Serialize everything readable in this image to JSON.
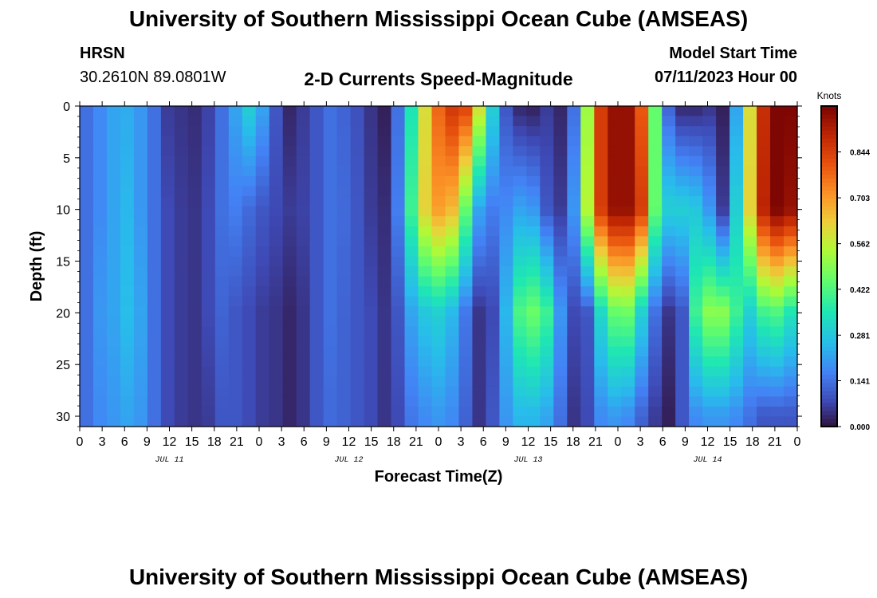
{
  "page": {
    "title_top": "University of Southern Mississippi Ocean Cube (AMSEAS)",
    "title_bottom": "University of Southern Mississippi Ocean Cube (AMSEAS)",
    "station": "HRSN",
    "coords": "30.2610N  89.0801W",
    "plot_title": "2-D Currents Speed-Magnitude",
    "start_label": "Model Start Time",
    "start_value": "07/11/2023 Hour 00"
  },
  "chart_data": {
    "type": "heatmap",
    "title": "2-D Currents Speed-Magnitude",
    "xlabel": "Forecast Time(Z)",
    "ylabel": "Depth (ft)",
    "ylim": [
      0,
      31
    ],
    "yticks": [
      0,
      5,
      10,
      15,
      20,
      25,
      30
    ],
    "x_hours_range": [
      0,
      96
    ],
    "x_tick_step_hours": 3,
    "x_tick_labels": [
      "0",
      "3",
      "6",
      "9",
      "12",
      "15",
      "18",
      "21",
      "0",
      "3",
      "6",
      "9",
      "12",
      "15",
      "18",
      "21",
      "0",
      "3",
      "6",
      "9",
      "12",
      "15",
      "18",
      "21",
      "0",
      "3",
      "6",
      "9",
      "12",
      "15",
      "18",
      "21",
      "0"
    ],
    "day_labels": [
      {
        "text": "JUL 11",
        "hour": 12
      },
      {
        "text": "JUL 12",
        "hour": 36
      },
      {
        "text": "JUL 13",
        "hour": 60
      },
      {
        "text": "JUL 14",
        "hour": 84
      }
    ],
    "colorbar": {
      "unit": "Knots",
      "ticks": [
        "0.000",
        "0.141",
        "0.281",
        "0.422",
        "0.562",
        "0.703",
        "0.844"
      ],
      "tick_values": [
        0.0,
        0.141,
        0.281,
        0.422,
        0.562,
        0.703,
        0.844
      ],
      "max": 0.985
    },
    "surface_speed_knots": [
      0.14,
      0.18,
      0.22,
      0.23,
      0.2,
      0.14,
      0.06,
      0.05,
      0.04,
      0.07,
      0.14,
      0.22,
      0.3,
      0.22,
      0.1,
      0.03,
      0.06,
      0.1,
      0.14,
      0.12,
      0.09,
      0.05,
      0.02,
      0.14,
      0.35,
      0.6,
      0.78,
      0.86,
      0.84,
      0.6,
      0.3,
      0.1,
      0.03,
      0.02,
      0.06,
      0.03,
      0.14,
      0.52,
      0.85,
      0.95,
      0.95,
      0.8,
      0.45,
      0.12,
      0.03,
      0.03,
      0.05,
      0.02,
      0.22,
      0.6,
      0.88,
      0.98,
      0.98
    ],
    "series_at_depth": [
      {
        "depth_ft": 10,
        "values": [
          0.14,
          0.18,
          0.22,
          0.25,
          0.2,
          0.14,
          0.08,
          0.06,
          0.05,
          0.08,
          0.14,
          0.16,
          0.13,
          0.1,
          0.08,
          0.06,
          0.07,
          0.1,
          0.14,
          0.13,
          0.1,
          0.06,
          0.04,
          0.16,
          0.4,
          0.62,
          0.7,
          0.66,
          0.45,
          0.22,
          0.16,
          0.18,
          0.22,
          0.2,
          0.1,
          0.06,
          0.2,
          0.55,
          0.85,
          0.95,
          0.95,
          0.85,
          0.45,
          0.3,
          0.3,
          0.28,
          0.2,
          0.06,
          0.3,
          0.62,
          0.9,
          0.98,
          0.95
        ]
      },
      {
        "depth_ft": 20,
        "values": [
          0.14,
          0.2,
          0.22,
          0.26,
          0.22,
          0.14,
          0.08,
          0.06,
          0.05,
          0.08,
          0.12,
          0.1,
          0.08,
          0.06,
          0.05,
          0.03,
          0.05,
          0.1,
          0.14,
          0.12,
          0.1,
          0.08,
          0.05,
          0.1,
          0.22,
          0.28,
          0.3,
          0.25,
          0.15,
          0.05,
          0.08,
          0.25,
          0.42,
          0.46,
          0.4,
          0.2,
          0.08,
          0.1,
          0.32,
          0.45,
          0.46,
          0.3,
          0.14,
          0.05,
          0.1,
          0.4,
          0.5,
          0.5,
          0.4,
          0.3,
          0.4,
          0.42,
          0.35
        ]
      },
      {
        "depth_ft": 30,
        "values": [
          0.14,
          0.18,
          0.2,
          0.22,
          0.2,
          0.14,
          0.08,
          0.06,
          0.05,
          0.06,
          0.1,
          0.1,
          0.08,
          0.06,
          0.05,
          0.03,
          0.05,
          0.1,
          0.13,
          0.12,
          0.1,
          0.08,
          0.05,
          0.08,
          0.15,
          0.18,
          0.2,
          0.18,
          0.12,
          0.05,
          0.1,
          0.2,
          0.25,
          0.25,
          0.22,
          0.14,
          0.05,
          0.08,
          0.18,
          0.2,
          0.18,
          0.12,
          0.06,
          0.02,
          0.1,
          0.18,
          0.2,
          0.2,
          0.18,
          0.14,
          0.1,
          0.1,
          0.1
        ]
      }
    ]
  }
}
